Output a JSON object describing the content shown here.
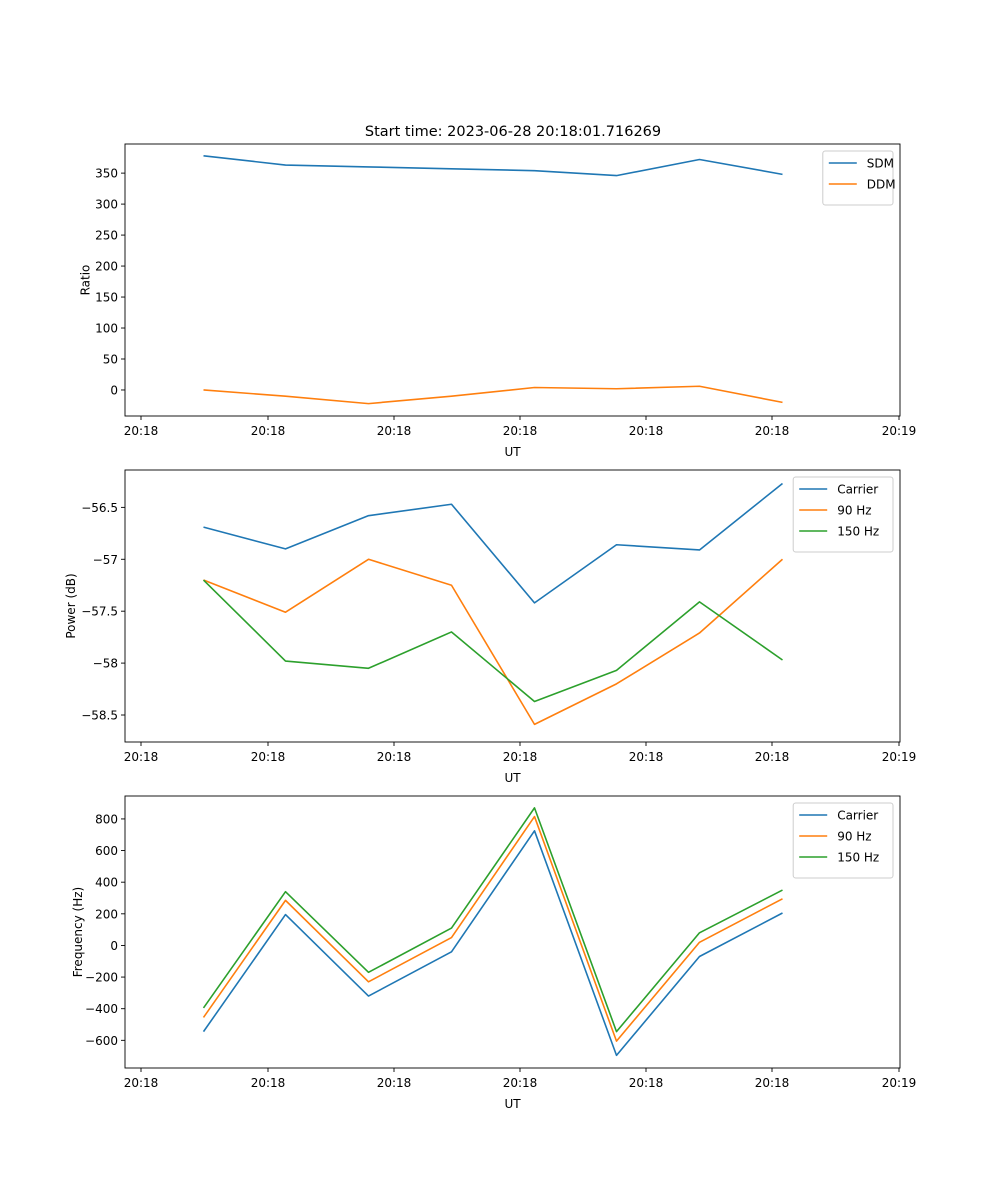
{
  "figure_title": "Start time: 2023-06-28 20:18:01.716269",
  "chart_data": [
    {
      "type": "line",
      "xlabel": "UT",
      "ylabel": "Ratio",
      "x_tick_labels": [
        "20:18",
        "20:18",
        "20:18",
        "20:18",
        "20:18",
        "20:18",
        "20:19"
      ],
      "y_ticks": [
        0,
        50,
        100,
        150,
        200,
        250,
        300,
        350
      ],
      "ylim": [
        -42,
        397
      ],
      "legend_position": "top-right",
      "series": [
        {
          "name": "SDM",
          "color": "#1f77b4",
          "values": [
            378,
            363,
            360,
            357,
            354,
            346,
            372,
            348
          ]
        },
        {
          "name": "DDM",
          "color": "#ff7f0e",
          "values": [
            0,
            -10,
            -22,
            -10,
            4,
            2,
            6,
            -20
          ]
        }
      ]
    },
    {
      "type": "line",
      "xlabel": "UT",
      "ylabel": "Power (dB)",
      "x_tick_labels": [
        "20:18",
        "20:18",
        "20:18",
        "20:18",
        "20:18",
        "20:18",
        "20:19"
      ],
      "y_ticks": [
        -56.5,
        -57.0,
        -57.5,
        -58.0,
        -58.5
      ],
      "ylim": [
        -58.76,
        -56.14
      ],
      "legend_position": "top-right",
      "series": [
        {
          "name": "Carrier",
          "color": "#1f77b4",
          "values": [
            -56.69,
            -56.9,
            -56.58,
            -56.47,
            -57.42,
            -56.86,
            -56.91,
            -56.27
          ]
        },
        {
          "name": "90 Hz",
          "color": "#ff7f0e",
          "values": [
            -57.2,
            -57.51,
            -57.0,
            -57.25,
            -58.59,
            -58.2,
            -57.71,
            -57.0
          ]
        },
        {
          "name": "150 Hz",
          "color": "#2ca02c",
          "values": [
            -57.2,
            -57.98,
            -58.05,
            -57.7,
            -58.37,
            -58.07,
            -57.41,
            -57.97
          ]
        }
      ]
    },
    {
      "type": "line",
      "xlabel": "UT",
      "ylabel": "Frequency (Hz)",
      "x_tick_labels": [
        "20:18",
        "20:18",
        "20:18",
        "20:18",
        "20:18",
        "20:18",
        "20:19"
      ],
      "y_ticks": [
        800,
        600,
        400,
        200,
        0,
        -200,
        -400,
        -600
      ],
      "ylim": [
        -775,
        945
      ],
      "legend_position": "top-right",
      "series": [
        {
          "name": "Carrier",
          "color": "#1f77b4",
          "values": [
            -545,
            195,
            -320,
            -40,
            725,
            -695,
            -70,
            205
          ]
        },
        {
          "name": "90 Hz",
          "color": "#ff7f0e",
          "values": [
            -455,
            285,
            -230,
            50,
            815,
            -605,
            20,
            295
          ]
        },
        {
          "name": "150 Hz",
          "color": "#2ca02c",
          "values": [
            -395,
            340,
            -170,
            110,
            870,
            -545,
            80,
            350
          ]
        }
      ]
    }
  ]
}
